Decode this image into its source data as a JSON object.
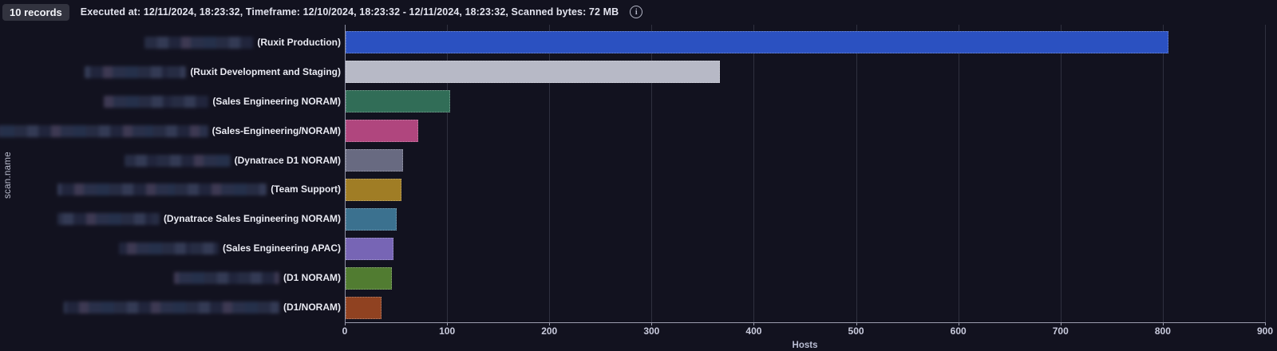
{
  "header": {
    "records_badge": "10 records",
    "meta": "Executed at: 12/11/2024, 18:23:32, Timeframe: 12/10/2024, 18:23:32 - 12/11/2024, 18:23:32, Scanned bytes: 72 MB"
  },
  "chart_data": {
    "type": "bar",
    "orientation": "horizontal",
    "title": "",
    "xlabel": "Hosts",
    "ylabel": "scan.name",
    "xlim": [
      0,
      900
    ],
    "xticks": [
      0,
      100,
      200,
      300,
      400,
      500,
      600,
      700,
      800,
      900
    ],
    "grid": true,
    "legend": false,
    "note": "category name prefixes are pixelated/redacted in the screenshot; only parenthetical suffixes are legible",
    "categories": [
      "(Ruxit Production)",
      "(Ruxit Development and Staging)",
      "(Sales Engineering NORAM)",
      "(Sales-Engineering/NORAM)",
      "(Dynatrace D1 NORAM)",
      "(Team Support)",
      "(Dynatrace Sales Engineering NORAM)",
      "(Sales Engineering APAC)",
      "(D1 NORAM)",
      "(D1/NORAM)"
    ],
    "values": [
      805,
      366,
      102,
      71,
      56,
      55,
      50,
      47,
      45,
      35
    ],
    "colors": [
      "#2b51c1",
      "#b7b9c6",
      "#316d57",
      "#b0467e",
      "#686a81",
      "#a07d25",
      "#3b718f",
      "#7765b5",
      "#517c31",
      "#904221"
    ],
    "redacted_prefix_widths": [
      136,
      127,
      131,
      264,
      133,
      262,
      128,
      125,
      132,
      270
    ]
  },
  "ui_colors": {
    "background": "#12121f",
    "gridline": "#2f303f",
    "axis": "#9b9dae",
    "badge_bg": "#32333f",
    "text": "#e8e9f1",
    "muted_text": "#c9cbdd"
  }
}
